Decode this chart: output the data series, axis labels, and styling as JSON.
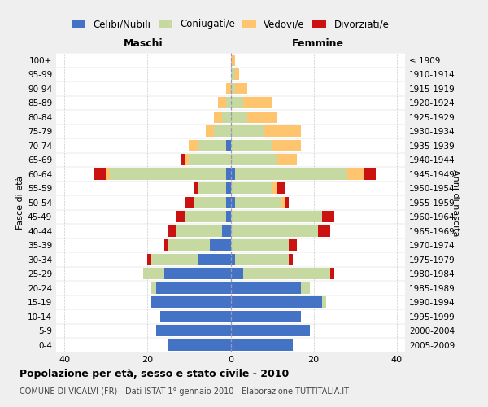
{
  "age_groups": [
    "0-4",
    "5-9",
    "10-14",
    "15-19",
    "20-24",
    "25-29",
    "30-34",
    "35-39",
    "40-44",
    "45-49",
    "50-54",
    "55-59",
    "60-64",
    "65-69",
    "70-74",
    "75-79",
    "80-84",
    "85-89",
    "90-94",
    "95-99",
    "100+"
  ],
  "birth_years": [
    "2005-2009",
    "2000-2004",
    "1995-1999",
    "1990-1994",
    "1985-1989",
    "1980-1984",
    "1975-1979",
    "1970-1974",
    "1965-1969",
    "1960-1964",
    "1955-1959",
    "1950-1954",
    "1945-1949",
    "1940-1944",
    "1935-1939",
    "1930-1934",
    "1925-1929",
    "1920-1924",
    "1915-1919",
    "1910-1914",
    "≤ 1909"
  ],
  "colors": {
    "celibi": "#4472c4",
    "coniugati": "#c5d9a0",
    "vedovi": "#ffc56e",
    "divorziati": "#cc1111"
  },
  "maschi": {
    "celibi": [
      15,
      18,
      17,
      19,
      18,
      16,
      8,
      5,
      2,
      1,
      1,
      1,
      1,
      0,
      1,
      0,
      0,
      0,
      0,
      0,
      0
    ],
    "coniugati": [
      0,
      0,
      0,
      0,
      1,
      5,
      11,
      10,
      11,
      10,
      8,
      7,
      28,
      10,
      7,
      4,
      2,
      1,
      0,
      0,
      0
    ],
    "vedovi": [
      0,
      0,
      0,
      0,
      0,
      0,
      0,
      0,
      0,
      0,
      0,
      0,
      1,
      1,
      2,
      2,
      2,
      2,
      1,
      0,
      0
    ],
    "divorziati": [
      0,
      0,
      0,
      0,
      0,
      0,
      1,
      1,
      2,
      2,
      2,
      1,
      3,
      1,
      0,
      0,
      0,
      0,
      0,
      0,
      0
    ]
  },
  "femmine": {
    "celibi": [
      15,
      19,
      17,
      22,
      17,
      3,
      1,
      0,
      0,
      0,
      1,
      0,
      1,
      0,
      0,
      0,
      0,
      0,
      0,
      0,
      0
    ],
    "coniugati": [
      0,
      0,
      0,
      1,
      2,
      21,
      13,
      14,
      21,
      22,
      11,
      10,
      27,
      11,
      10,
      8,
      4,
      3,
      1,
      1,
      0
    ],
    "vedovi": [
      0,
      0,
      0,
      0,
      0,
      0,
      0,
      0,
      0,
      0,
      1,
      1,
      4,
      5,
      7,
      9,
      7,
      7,
      3,
      1,
      1
    ],
    "divorziati": [
      0,
      0,
      0,
      0,
      0,
      1,
      1,
      2,
      3,
      3,
      1,
      2,
      3,
      0,
      0,
      0,
      0,
      0,
      0,
      0,
      0
    ]
  },
  "xlim": 42,
  "xticks": [
    -40,
    -20,
    0,
    20,
    40
  ],
  "title": "Popolazione per età, sesso e stato civile - 2010",
  "subtitle": "COMUNE DI VICALVI (FR) - Dati ISTAT 1° gennaio 2010 - Elaborazione TUTTITALIA.IT",
  "header_left": "Maschi",
  "header_right": "Femmine",
  "ylabel_left": "Fasce di età",
  "ylabel_right": "Anni di nascita",
  "legend_labels": [
    "Celibi/Nubili",
    "Coniugati/e",
    "Vedovi/e",
    "Divorziati/e"
  ],
  "bg_color": "#efefef",
  "plot_bg": "#ffffff",
  "grid_color": "#cccccc",
  "center_line_color": "#9999bb"
}
